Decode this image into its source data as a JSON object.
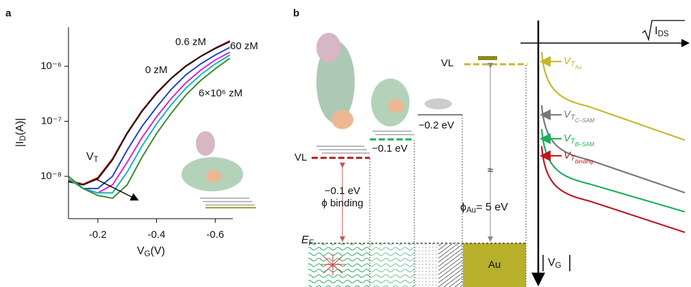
{
  "chart_data": {
    "type": "line",
    "panel_label": "a",
    "x_label": [
      "V",
      "G",
      "(V)"
    ],
    "y_label": [
      "|I",
      "D",
      "(A)|"
    ],
    "annotation": [
      "V",
      "T"
    ],
    "log_y": true,
    "xlim": [
      -0.1,
      -0.66
    ],
    "xticks": [
      -0.2,
      -0.4,
      -0.6
    ],
    "ylim": [
      1.7e-09,
      5.1e-06
    ],
    "yticks": [
      {
        "value": 1e-08,
        "label": "10⁻⁸"
      },
      {
        "value": 1e-07,
        "label": "10⁻⁷"
      },
      {
        "value": 1e-06,
        "label": "10⁻⁶"
      }
    ],
    "x": [
      -0.1,
      -0.15,
      -0.2,
      -0.25,
      -0.3,
      -0.35,
      -0.4,
      -0.45,
      -0.5,
      -0.55,
      -0.6,
      -0.65
    ],
    "series": [
      {
        "name": "0 zM",
        "color": "#e0201c",
        "values": [
          8.5e-09,
          7.2e-09,
          9.5e-09,
          2.1e-08,
          6.2e-08,
          1.55e-07,
          3.3e-07,
          6.1e-07,
          1.02e-06,
          1.52e-06,
          2.15e-06,
          2.9e-06
        ]
      },
      {
        "name": "0.6 zM",
        "color": "#111111",
        "values": [
          8e-09,
          7e-09,
          9e-09,
          2e-08,
          6e-08,
          1.5e-07,
          3.2e-07,
          6e-07,
          1e-06,
          1.5e-06,
          2.1e-06,
          2.8e-06
        ]
      },
      {
        "name": "60 zM",
        "color": "#1f3fd0",
        "values": [
          9e-09,
          6e-09,
          6e-09,
          1e-08,
          3e-08,
          8e-08,
          1.8e-07,
          3.8e-07,
          7e-07,
          1.1e-06,
          1.6e-06,
          2.2e-06
        ]
      },
      {
        "color": "#e020d0",
        "values": [
          9e-09,
          6e-09,
          5e-09,
          7e-09,
          1.8e-08,
          5e-08,
          1.2e-07,
          2.6e-07,
          5e-07,
          8.5e-07,
          1.3e-06,
          1.8e-06
        ]
      },
      {
        "color": "#10b8b8",
        "values": [
          9e-09,
          6e-09,
          5e-09,
          5e-09,
          1.2e-08,
          3.5e-08,
          9e-08,
          2e-07,
          4e-07,
          7e-07,
          1.1e-06,
          1.6e-06
        ]
      },
      {
        "name": "6×10⁶ zM",
        "color": "#3a8a2a",
        "values": [
          1e-08,
          6e-09,
          4.5e-09,
          4e-09,
          7e-09,
          2.2e-08,
          6e-08,
          1.4e-07,
          3e-07,
          5.5e-07,
          9e-07,
          1.4e-06
        ]
      }
    ]
  },
  "diagram": {
    "panel_label": "b",
    "current_axis": [
      "I",
      "DS"
    ],
    "gate_axis": [
      "V",
      "G"
    ],
    "vl_left": "VL",
    "vl_au": "VL",
    "binding_shift": "−0.1 eV",
    "binding_phi": "ϕ binding",
    "bsam_shift": "−0.1 eV",
    "csam_shift": "−0.2 eV",
    "approx": "≈",
    "work_function": [
      "ϕ",
      "Au",
      "= 5 eV"
    ],
    "fermi": [
      "E",
      "F"
    ],
    "metal": "Au",
    "thresholds": [
      {
        "label": [
          "V",
          "T",
          "Au"
        ],
        "color": "#c8b62a"
      },
      {
        "label": [
          "V",
          "T",
          "C–SAM"
        ],
        "color": "#777777"
      },
      {
        "label": [
          "V",
          "T",
          "B–SAM"
        ],
        "color": "#18b058"
      },
      {
        "label": [
          "V",
          "T",
          "binding"
        ],
        "color": "#c0141c"
      }
    ]
  }
}
